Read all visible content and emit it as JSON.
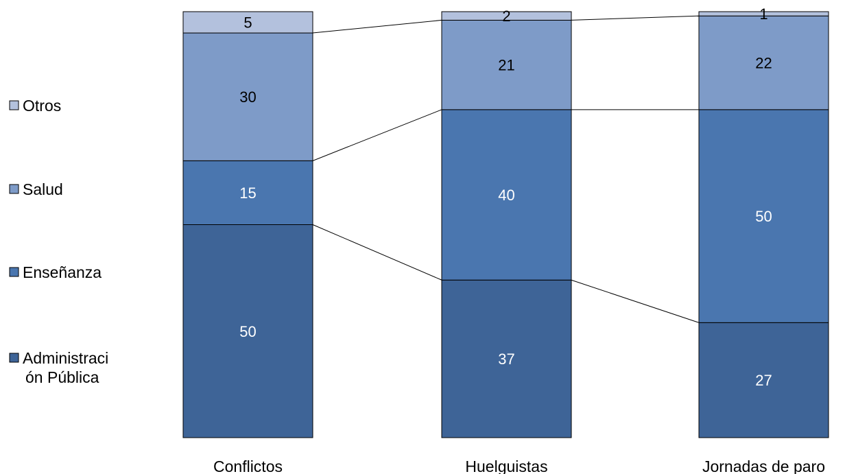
{
  "chart_data": {
    "type": "bar",
    "stacked": true,
    "percent_stacked": true,
    "categories": [
      "Conflictos",
      "Huelguistas",
      "Jornadas de paro"
    ],
    "series": [
      {
        "name": "Administración Pública",
        "legend_lines": [
          "Administraci",
          "ón Pública"
        ],
        "values": [
          50,
          37,
          27
        ],
        "color": "#3E6497",
        "label_color": "#ffffff"
      },
      {
        "name": "Enseñanza",
        "legend_lines": [
          "Enseñanza"
        ],
        "values": [
          15,
          40,
          50
        ],
        "color": "#4A76AF",
        "label_color": "#ffffff"
      },
      {
        "name": "Salud",
        "legend_lines": [
          "Salud"
        ],
        "values": [
          30,
          21,
          22
        ],
        "color": "#7E9BC8",
        "label_color": "#000000"
      },
      {
        "name": "Otros",
        "legend_lines": [
          "Otros"
        ],
        "values": [
          5,
          2,
          1
        ],
        "color": "#B3C1DD",
        "label_color": "#000000"
      }
    ],
    "series_lines": true,
    "legend_position": "left",
    "grid": false,
    "ylim": [
      0,
      100
    ]
  }
}
